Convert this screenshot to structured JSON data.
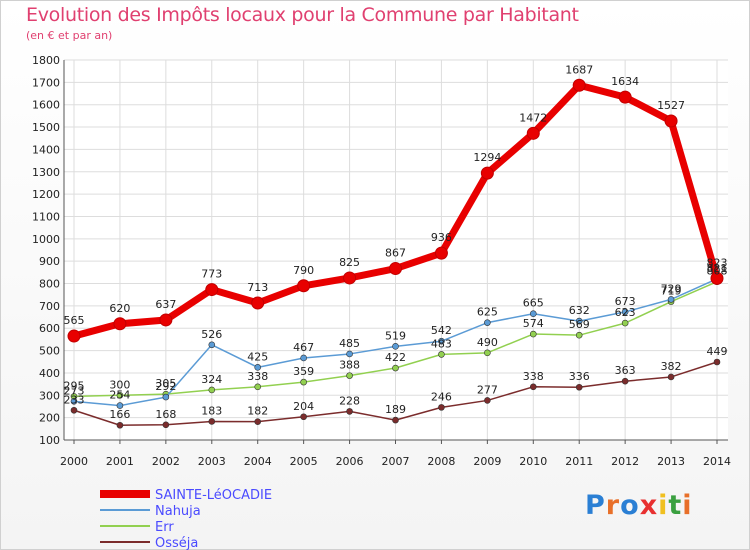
{
  "header": {
    "title": "Evolution des Impôts locaux pour la Commune par Habitant",
    "subtitle": "(en € et par an)"
  },
  "logo": {
    "text": "Proxiti",
    "colors": [
      "#2a7fd4",
      "#e8702a",
      "#2a7fd4",
      "#e83030",
      "#f0c020",
      "#3aa040",
      "#e8702a"
    ]
  },
  "chart_data": {
    "type": "line",
    "title": "Evolution des Impôts locaux pour la Commune par Habitant",
    "subtitle": "(en € et par an)",
    "xlabel": "",
    "ylabel": "",
    "x": [
      "2000",
      "2001",
      "2002",
      "2003",
      "2004",
      "2005",
      "2006",
      "2007",
      "2008",
      "2009",
      "2010",
      "2011",
      "2012",
      "2013",
      "2014"
    ],
    "ylim": [
      100,
      1800
    ],
    "yticks": [
      100,
      200,
      300,
      400,
      500,
      600,
      700,
      800,
      900,
      1000,
      1100,
      1200,
      1300,
      1400,
      1500,
      1600,
      1700,
      1800
    ],
    "grid": true,
    "legend_position": "bottom-left",
    "series": [
      {
        "name": "SAINTE-LéOCADIE",
        "color": "#e80000",
        "values": [
          565,
          620,
          637,
          773,
          713,
          790,
          825,
          867,
          936,
          1294,
          1472,
          1687,
          1634,
          1527,
          823
        ]
      },
      {
        "name": "Nahuja",
        "color": "#5b9bd5",
        "values": [
          273,
          254,
          292,
          526,
          425,
          467,
          485,
          519,
          542,
          625,
          665,
          632,
          673,
          729,
          821
        ]
      },
      {
        "name": "Err",
        "color": "#92d050",
        "values": [
          295,
          300,
          305,
          324,
          338,
          359,
          388,
          422,
          483,
          490,
          574,
          569,
          623,
          719,
          808
        ]
      },
      {
        "name": "Osséja",
        "color": "#7b2c2c",
        "values": [
          233,
          166,
          168,
          183,
          182,
          204,
          228,
          189,
          246,
          277,
          338,
          336,
          363,
          382,
          449
        ]
      }
    ]
  }
}
